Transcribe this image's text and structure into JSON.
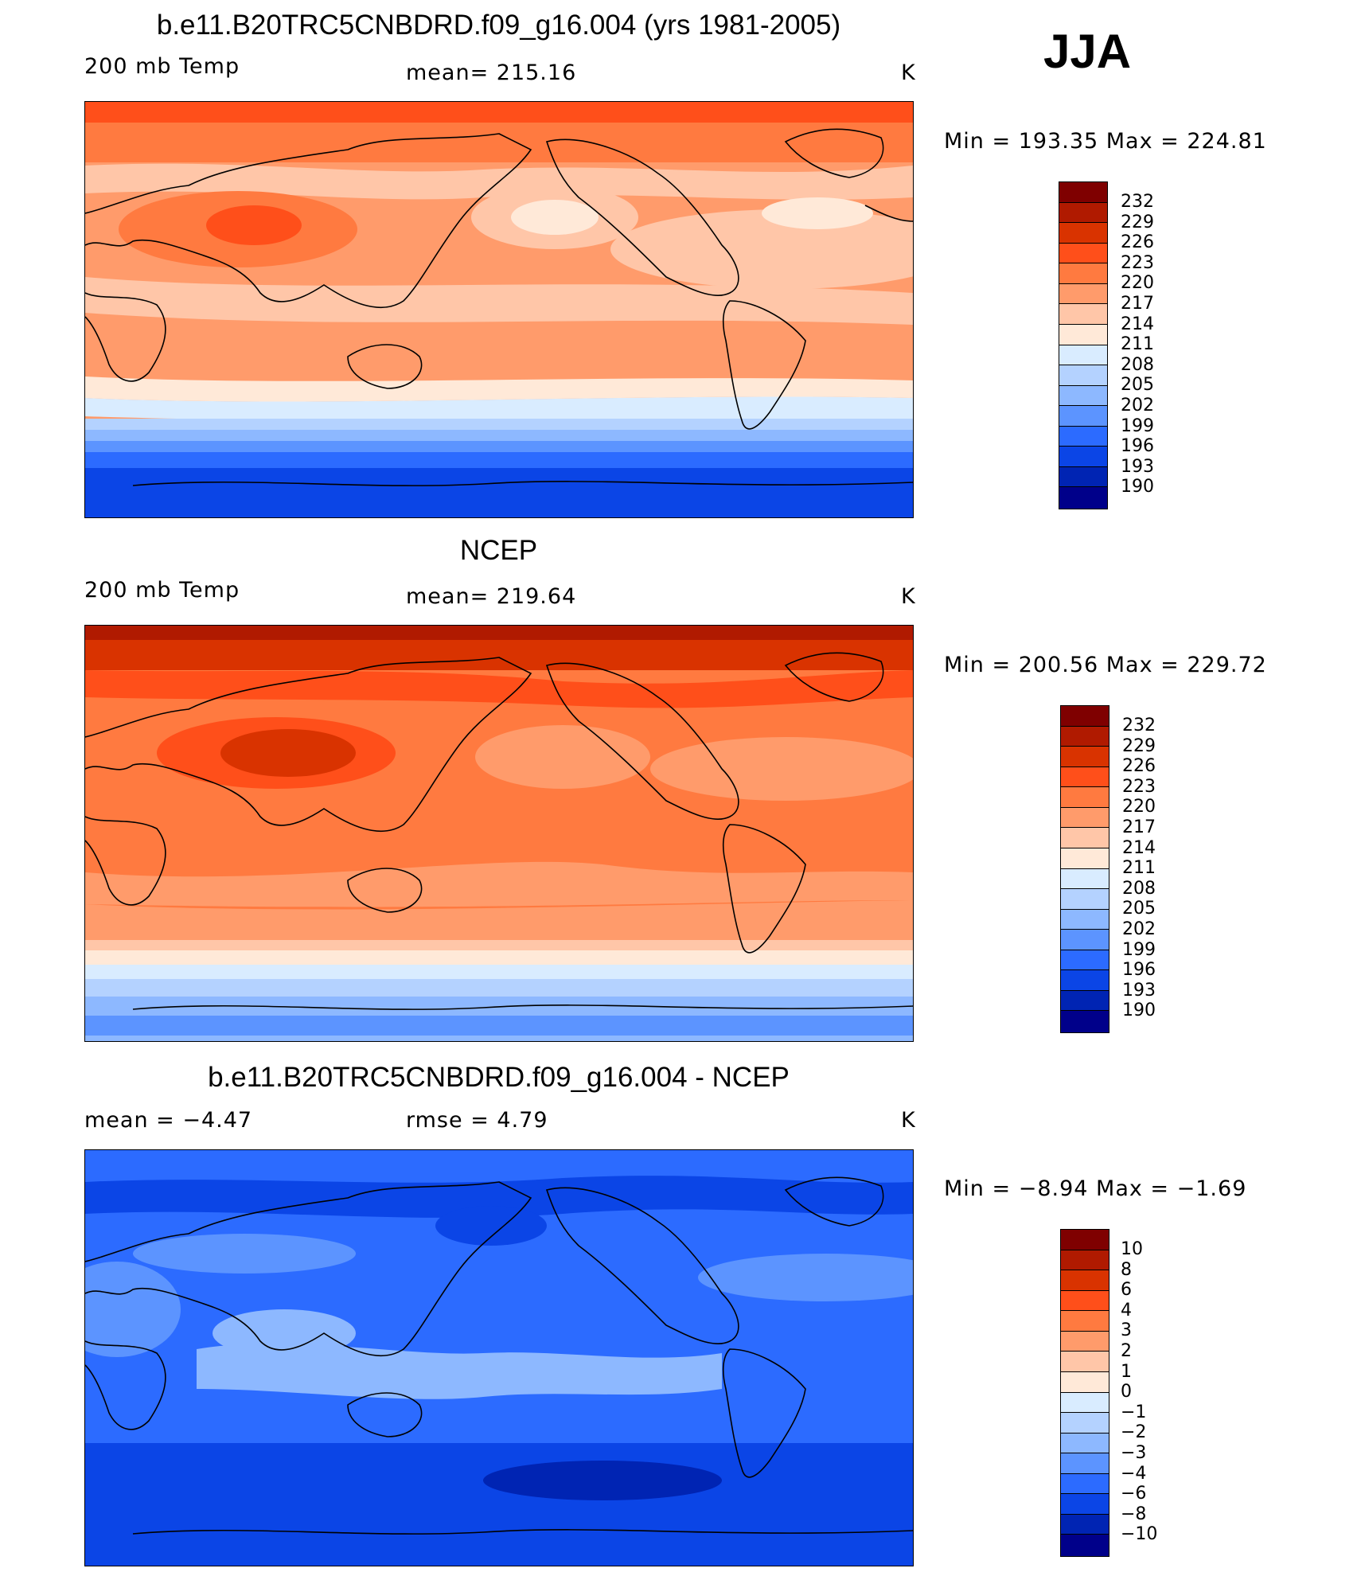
{
  "season": "JJA",
  "panels": [
    {
      "title": "b.e11.B20TRC5CNBDRD.f09_g16.004 (yrs 1981-2005)",
      "left": "200 mb Temp",
      "center": "mean=  215.16",
      "right": "K",
      "stats": "Min  =  193.35  Max  =  224.81",
      "levels": [
        "232",
        "229",
        "226",
        "223",
        "220",
        "217",
        "214",
        "211",
        "208",
        "205",
        "202",
        "199",
        "196",
        "193",
        "190"
      ],
      "colors": [
        "#7f0000",
        "#b01a00",
        "#d93300",
        "#ff4f1a",
        "#ff7a40",
        "#ff9b6b",
        "#ffc6a8",
        "#ffe9d8",
        "#d9ecff",
        "#b4d2ff",
        "#8db8ff",
        "#5c94ff",
        "#2c6bff",
        "#0b45e6",
        "#0024b3",
        "#00008a"
      ]
    },
    {
      "title": "NCEP",
      "left": "200 mb Temp",
      "center": "mean=  219.64",
      "right": "K",
      "stats": "Min  =  200.56  Max  =  229.72",
      "levels": [
        "232",
        "229",
        "226",
        "223",
        "220",
        "217",
        "214",
        "211",
        "208",
        "205",
        "202",
        "199",
        "196",
        "193",
        "190"
      ],
      "colors": [
        "#7f0000",
        "#b01a00",
        "#d93300",
        "#ff4f1a",
        "#ff7a40",
        "#ff9b6b",
        "#ffc6a8",
        "#ffe9d8",
        "#d9ecff",
        "#b4d2ff",
        "#8db8ff",
        "#5c94ff",
        "#2c6bff",
        "#0b45e6",
        "#0024b3",
        "#00008a"
      ]
    },
    {
      "title": "b.e11.B20TRC5CNBDRD.f09_g16.004 - NCEP",
      "left": "mean  =     −4.47",
      "center": "rmse  =      4.79",
      "right": "K",
      "stats": "Min  =    −8.94  Max  =    −1.69",
      "levels": [
        "10",
        "8",
        "6",
        "4",
        "3",
        "2",
        "1",
        "0",
        "−1",
        "−2",
        "−3",
        "−4",
        "−6",
        "−8",
        "−10"
      ],
      "colors": [
        "#7f0000",
        "#b01a00",
        "#d93300",
        "#ff4f1a",
        "#ff7a40",
        "#ff9b6b",
        "#ffc6a8",
        "#ffe9d8",
        "#d9ecff",
        "#b4d2ff",
        "#8db8ff",
        "#5c94ff",
        "#2c6bff",
        "#0b45e6",
        "#0024b3",
        "#00008a"
      ]
    }
  ],
  "chart_data": {
    "type": "heatmap",
    "projection": "cylindrical equidistant, centered on Pacific",
    "variable": "200 mb Temp",
    "units": "K",
    "season": "JJA",
    "maps": [
      {
        "name": "b.e11.B20TRC5CNBDRD.f09_g16.004 (yrs 1981-2005)",
        "mean": 215.16,
        "min": 193.35,
        "max": 224.81,
        "contour_levels": [
          190,
          193,
          196,
          199,
          202,
          205,
          208,
          211,
          214,
          217,
          220,
          223,
          226,
          229,
          232
        ],
        "lat_band_values": {
          "90N": 222,
          "60N": 219,
          "30N": 220,
          "0": 218,
          "30S": 218,
          "45S": 210,
          "60S": 200,
          "90S": 194
        }
      },
      {
        "name": "NCEP",
        "mean": 219.64,
        "min": 200.56,
        "max": 229.72,
        "contour_levels": [
          190,
          193,
          196,
          199,
          202,
          205,
          208,
          211,
          214,
          217,
          220,
          223,
          226,
          229,
          232
        ],
        "lat_band_values": {
          "90N": 226,
          "60N": 223,
          "30N": 222,
          "0": 221,
          "30S": 221,
          "45S": 214,
          "60S": 206,
          "90S": 201
        }
      },
      {
        "name": "b.e11.B20TRC5CNBDRD.f09_g16.004 - NCEP",
        "mean": -4.47,
        "rmse": 4.79,
        "min": -8.94,
        "max": -1.69,
        "contour_levels": [
          -10,
          -8,
          -6,
          -4,
          -3,
          -2,
          -1,
          0,
          1,
          2,
          3,
          4,
          6,
          8,
          10
        ],
        "lat_band_values": {
          "90N": -4.5,
          "60N": -4.5,
          "30N": -3,
          "0": -3,
          "30S": -3.5,
          "45S": -5,
          "60S": -6,
          "90S": -6
        }
      }
    ]
  }
}
